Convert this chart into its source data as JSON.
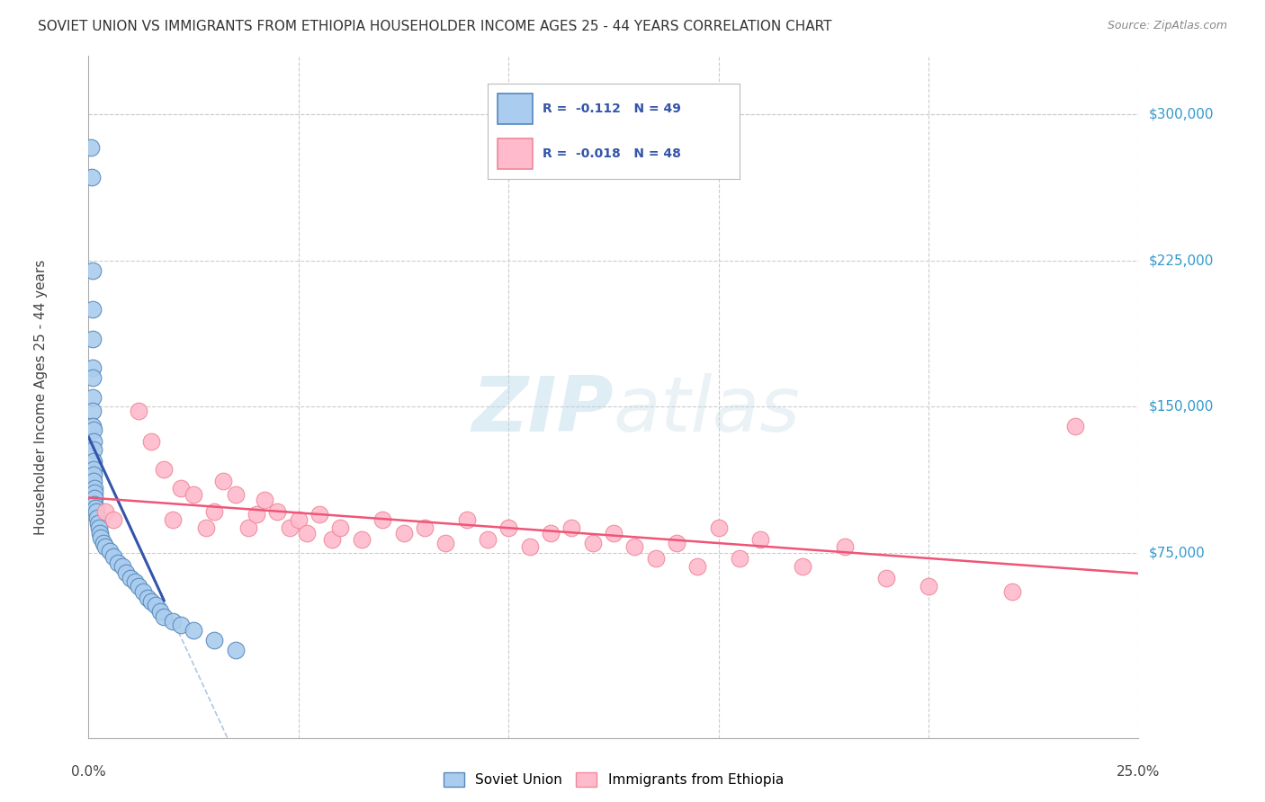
{
  "title": "SOVIET UNION VS IMMIGRANTS FROM ETHIOPIA HOUSEHOLDER INCOME AGES 25 - 44 YEARS CORRELATION CHART",
  "source": "Source: ZipAtlas.com",
  "ylabel": "Householder Income Ages 25 - 44 years",
  "xlim": [
    0.0,
    25.0
  ],
  "ylim": [
    -20000,
    330000
  ],
  "yticks": [
    75000,
    150000,
    225000,
    300000
  ],
  "ytick_labels": [
    "$75,000",
    "$150,000",
    "$225,000",
    "$300,000"
  ],
  "legend_r1": "R =  -0.112   N = 49",
  "legend_r2": "R =  -0.018   N = 48",
  "blue_scatter_face": "#aaccee",
  "blue_scatter_edge": "#5588bb",
  "pink_scatter_face": "#ffbbcc",
  "pink_scatter_edge": "#ee8899",
  "blue_line_color": "#3355aa",
  "blue_dash_color": "#99bbdd",
  "pink_line_color": "#ee5577",
  "grid_color": "#cccccc",
  "watermark_color": "#cce8f0",
  "title_color": "#333333",
  "source_color": "#888888",
  "right_label_color": "#3399cc",
  "soviet_x": [
    0.05,
    0.08,
    0.1,
    0.1,
    0.1,
    0.1,
    0.1,
    0.1,
    0.1,
    0.1,
    0.12,
    0.12,
    0.12,
    0.12,
    0.12,
    0.13,
    0.13,
    0.14,
    0.15,
    0.15,
    0.15,
    0.16,
    0.18,
    0.2,
    0.22,
    0.25,
    0.28,
    0.3,
    0.35,
    0.4,
    0.5,
    0.6,
    0.7,
    0.8,
    0.9,
    1.0,
    1.1,
    1.2,
    1.3,
    1.4,
    1.5,
    1.6,
    1.7,
    1.8,
    2.0,
    2.2,
    2.5,
    3.0,
    3.5
  ],
  "soviet_y": [
    283000,
    268000,
    220000,
    200000,
    185000,
    170000,
    165000,
    155000,
    148000,
    140000,
    138000,
    132000,
    128000,
    122000,
    118000,
    115000,
    112000,
    108000,
    106000,
    103000,
    100000,
    98000,
    96000,
    93000,
    90000,
    88000,
    85000,
    83000,
    80000,
    78000,
    76000,
    73000,
    70000,
    68000,
    65000,
    62000,
    60000,
    58000,
    55000,
    52000,
    50000,
    48000,
    45000,
    42000,
    40000,
    38000,
    35000,
    30000,
    25000
  ],
  "ethiopia_x": [
    0.4,
    0.6,
    1.2,
    1.5,
    1.8,
    2.0,
    2.2,
    2.5,
    2.8,
    3.0,
    3.2,
    3.5,
    3.8,
    4.0,
    4.2,
    4.5,
    4.8,
    5.0,
    5.2,
    5.5,
    5.8,
    6.0,
    6.5,
    7.0,
    7.5,
    8.0,
    8.5,
    9.0,
    9.5,
    10.0,
    10.5,
    11.0,
    11.5,
    12.0,
    12.5,
    13.0,
    13.5,
    14.0,
    14.5,
    15.0,
    15.5,
    16.0,
    17.0,
    18.0,
    19.0,
    20.0,
    22.0,
    23.5
  ],
  "ethiopia_y": [
    96000,
    92000,
    148000,
    132000,
    118000,
    92000,
    108000,
    105000,
    88000,
    96000,
    112000,
    105000,
    88000,
    95000,
    102000,
    96000,
    88000,
    92000,
    85000,
    95000,
    82000,
    88000,
    82000,
    92000,
    85000,
    88000,
    80000,
    92000,
    82000,
    88000,
    78000,
    85000,
    88000,
    80000,
    85000,
    78000,
    72000,
    80000,
    68000,
    88000,
    72000,
    82000,
    68000,
    78000,
    62000,
    58000,
    55000,
    140000
  ]
}
